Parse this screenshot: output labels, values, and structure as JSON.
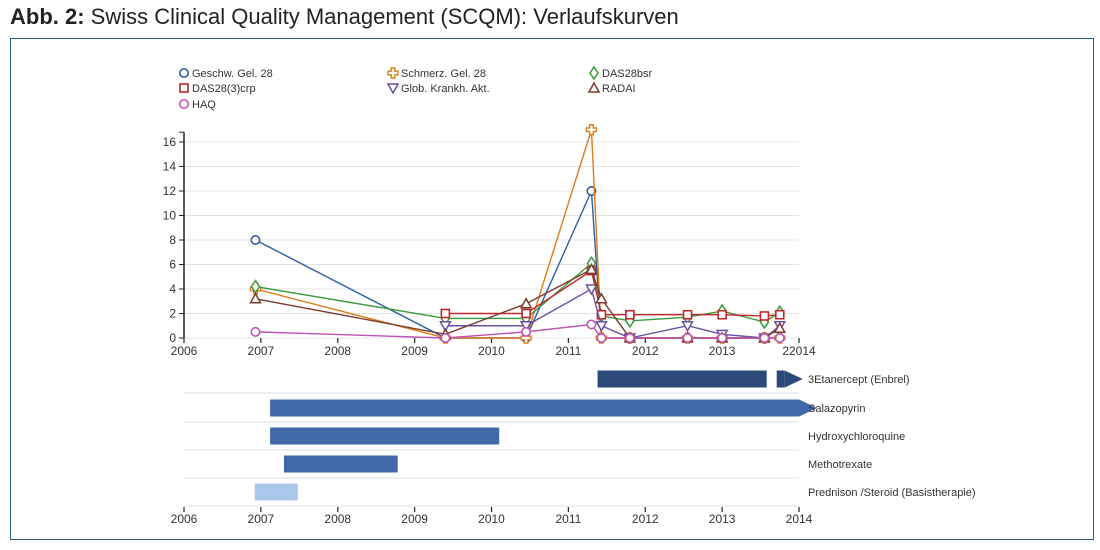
{
  "figure": {
    "title_prefix": "Abb. 2:",
    "title_text": " Swiss Clinical Quality Management (SCQM): Verlaufskurven"
  },
  "chart_data": [
    {
      "type": "line",
      "title": "",
      "xlabel": "",
      "ylabel": "",
      "xlim": [
        2006,
        2014
      ],
      "ylim": [
        0,
        17
      ],
      "x_ticks": [
        "2006",
        "2007",
        "2008",
        "2009",
        "2010",
        "2011",
        "2012",
        "2013",
        "22014"
      ],
      "y_ticks": [
        "0",
        "2",
        "4",
        "6",
        "8",
        "10",
        "12",
        "14",
        "16"
      ],
      "grid": "horizontal",
      "legend_position": "top",
      "series": [
        {
          "name": "Geschw. Gel. 28",
          "marker": "circle",
          "color": "#2e5fa3",
          "x": [
            2006.93,
            2009.4,
            2010.45,
            2011.3,
            2011.43,
            2011.8,
            2012.55,
            2013.0,
            2013.55,
            2013.75
          ],
          "y": [
            8,
            0,
            0,
            12,
            0,
            0,
            0,
            0,
            0,
            0
          ]
        },
        {
          "name": "Schmerz. Gel. 28",
          "marker": "cross",
          "color": "#e07b1a",
          "x": [
            2006.93,
            2009.4,
            2010.45,
            2011.3,
            2011.43,
            2011.8,
            2012.55,
            2013.0,
            2013.55,
            2013.75
          ],
          "y": [
            4,
            0,
            0,
            17,
            0,
            0,
            0,
            0,
            0,
            0
          ]
        },
        {
          "name": "DAS28bsr",
          "marker": "diamond",
          "color": "#3a9a3a",
          "x": [
            2006.93,
            2009.4,
            2010.45,
            2011.3,
            2011.43,
            2011.8,
            2012.55,
            2013.0,
            2013.55,
            2013.75
          ],
          "y": [
            4.2,
            1.6,
            1.6,
            6.1,
            1.8,
            1.4,
            1.7,
            2.2,
            1.3,
            2.1
          ]
        },
        {
          "name": "DAS28(3)crp",
          "marker": "square",
          "color": "#c0282a",
          "x": [
            2009.4,
            2010.45,
            2011.3,
            2011.43,
            2011.8,
            2012.55,
            2013.0,
            2013.55,
            2013.75
          ],
          "y": [
            2,
            2,
            5.5,
            1.9,
            1.9,
            1.9,
            1.9,
            1.8,
            1.9
          ]
        },
        {
          "name": "Glob. Krankh. Akt.",
          "marker": "triangle-down",
          "color": "#6a4fa0",
          "x": [
            2009.4,
            2010.45,
            2011.3,
            2011.43,
            2011.8,
            2012.55,
            2013.0,
            2013.55,
            2013.75
          ],
          "y": [
            1,
            1,
            4,
            1,
            0,
            1,
            0.3,
            0,
            1
          ]
        },
        {
          "name": "RADAI",
          "marker": "triangle-up",
          "color": "#7a3b2e",
          "x": [
            2006.93,
            2009.4,
            2010.45,
            2011.3,
            2011.43,
            2011.8,
            2012.55,
            2013.0,
            2013.55,
            2013.75
          ],
          "y": [
            3.2,
            0.3,
            2.8,
            5.6,
            3.2,
            0,
            0,
            0,
            0,
            0.8
          ]
        },
        {
          "name": "HAQ",
          "marker": "circle",
          "color": "#c054b8",
          "x": [
            2006.93,
            2009.4,
            2010.45,
            2011.3,
            2011.43,
            2011.8,
            2012.55,
            2013.0,
            2013.55,
            2013.75
          ],
          "y": [
            0.5,
            0,
            0.5,
            1.1,
            0,
            0,
            0,
            0,
            0,
            0
          ]
        }
      ]
    },
    {
      "type": "bar",
      "orientation": "horizontal-gantt",
      "title": "",
      "xlim": [
        2006,
        2014
      ],
      "x_ticks": [
        "2006",
        "2007",
        "2008",
        "2009",
        "2010",
        "2011",
        "2012",
        "2013",
        "2014"
      ],
      "categories": [
        "3Etanercept (Enbrel)",
        "Salazopyrin",
        "Hydroxychloroquine",
        "Methotrexate",
        "Prednison /Steroid (Basistherapie)"
      ],
      "bars": [
        {
          "label": "3Etanercept (Enbrel)",
          "start": 2011.38,
          "end": 2013.58,
          "ongoing": true,
          "color": "#2b4a7a"
        },
        {
          "label": "Salazopyrin",
          "start": 2007.12,
          "end": 2014.0,
          "ongoing": true,
          "color": "#4169aa"
        },
        {
          "label": "Hydroxychloroquine",
          "start": 2007.12,
          "end": 2010.1,
          "ongoing": false,
          "color": "#4169aa"
        },
        {
          "label": "Methotrexate",
          "start": 2007.3,
          "end": 2008.78,
          "ongoing": false,
          "color": "#4169aa"
        },
        {
          "label": "Prednison /Steroid (Basistherapie)",
          "start": 2006.92,
          "end": 2007.48,
          "ongoing": false,
          "color": "#a9c8ec"
        }
      ]
    }
  ]
}
